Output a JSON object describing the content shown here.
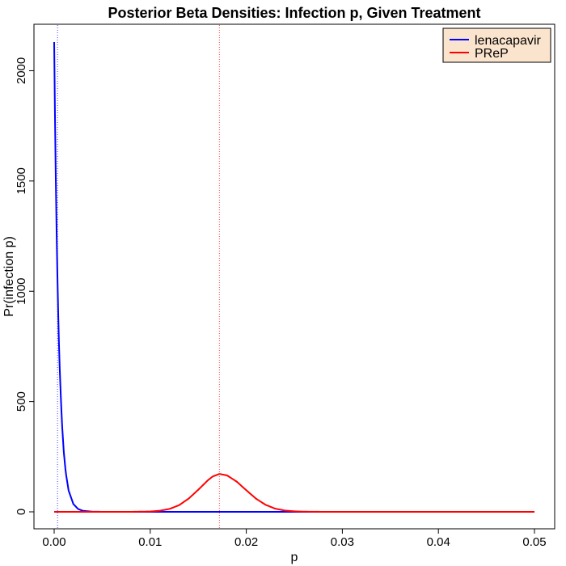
{
  "chart_data": {
    "type": "line",
    "title": "Posterior Beta Densities: Infection p, Given Treatment",
    "xlabel": "p",
    "ylabel": "Pr(infection p)",
    "xlim": [
      0,
      0.05
    ],
    "ylim": [
      0,
      2130
    ],
    "x_ticks": [
      0.0,
      0.01,
      0.02,
      0.03,
      0.04,
      0.05
    ],
    "x_tick_labels": [
      "0.00",
      "0.01",
      "0.02",
      "0.03",
      "0.04",
      "0.05"
    ],
    "y_ticks": [
      0,
      500,
      1000,
      1500,
      2000
    ],
    "y_tick_labels": [
      "0",
      "500",
      "1000",
      "1500",
      "2000"
    ],
    "grid": false,
    "legend_position": "top-right",
    "series": [
      {
        "name": "lenacapavir",
        "color": "#0000ff",
        "x": [
          0,
          0.0001,
          0.0002,
          0.0003,
          0.0004,
          0.0005,
          0.0006,
          0.0008,
          0.001,
          0.0012,
          0.0015,
          0.002,
          0.0025,
          0.003,
          0.004,
          0.005,
          0.01,
          0.02,
          0.03,
          0.04,
          0.05
        ],
        "y": [
          2130,
          1730,
          1410,
          1150,
          935,
          760,
          620,
          410,
          272,
          180,
          97,
          35,
          12.7,
          4.6,
          0.6,
          0.08,
          0,
          0,
          0,
          0,
          0
        ],
        "mode_line_x": 0.00035
      },
      {
        "name": "PReP",
        "color": "#ff0000",
        "x": [
          0,
          0.005,
          0.008,
          0.01,
          0.011,
          0.012,
          0.013,
          0.014,
          0.015,
          0.016,
          0.0165,
          0.0172,
          0.018,
          0.019,
          0.02,
          0.021,
          0.022,
          0.023,
          0.024,
          0.025,
          0.026,
          0.028,
          0.03,
          0.04,
          0.05
        ],
        "y": [
          0,
          0,
          0.1,
          1.5,
          5,
          13,
          30,
          60,
          100,
          143,
          160,
          172,
          165,
          137,
          98,
          60,
          32,
          14.5,
          6,
          2.3,
          0.8,
          0.1,
          0,
          0,
          0
        ],
        "mode_line_x": 0.0172
      }
    ]
  }
}
